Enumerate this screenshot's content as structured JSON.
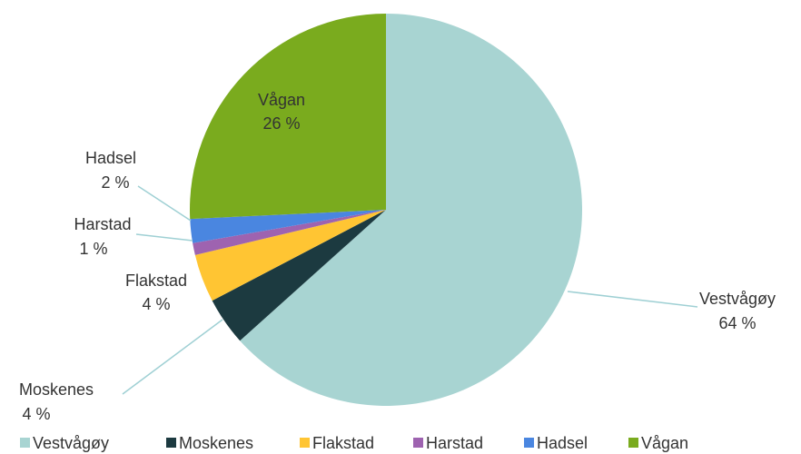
{
  "chart_data": {
    "type": "pie",
    "categories": [
      "Vestvågøy",
      "Moskenes",
      "Flakstad",
      "Harstad",
      "Hadsel",
      "Vågan"
    ],
    "values": [
      64,
      4,
      4,
      1,
      2,
      26
    ],
    "value_labels": [
      "64 %",
      "4 %",
      "4 %",
      "1 %",
      "2 %",
      "26 %"
    ],
    "colors": [
      "#a8d4d2",
      "#1c3a40",
      "#ffc533",
      "#9e63b0",
      "#4a86e0",
      "#7aab1e"
    ],
    "legend": "bottom"
  }
}
